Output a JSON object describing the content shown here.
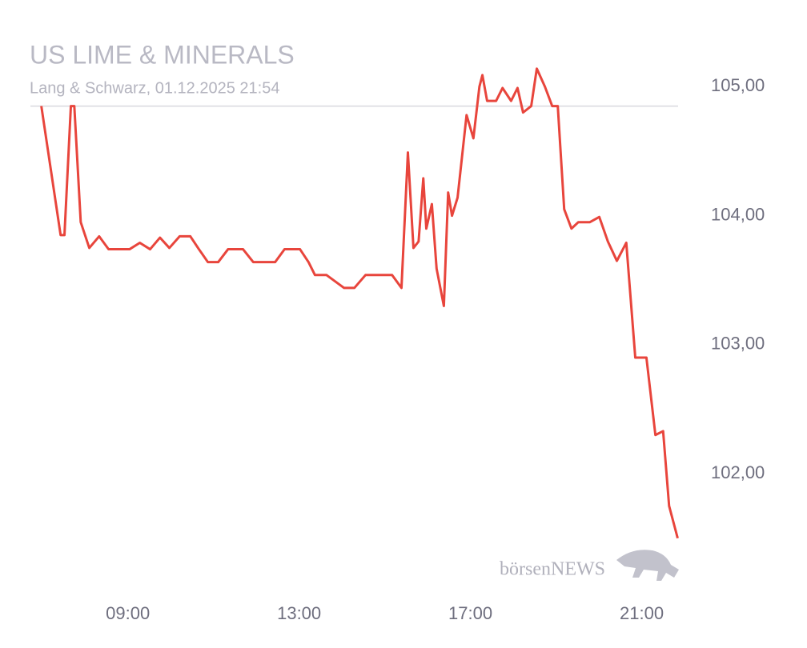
{
  "chart_data": {
    "type": "line",
    "title": "US LIME & MINERALS",
    "subtitle": "Lang & Schwarz, 01.12.2025 21:54",
    "watermark": "börsenNEWS",
    "color": "#e8453c",
    "reference_value": 104.85,
    "reference_color": "#d9d9de",
    "x": [
      6.98,
      7.43,
      7.52,
      7.67,
      7.75,
      7.9,
      8.1,
      8.33,
      8.55,
      8.78,
      9.04,
      9.28,
      9.52,
      9.75,
      9.97,
      10.21,
      10.46,
      10.66,
      10.87,
      11.11,
      11.34,
      11.69,
      11.93,
      12.44,
      12.66,
      13.02,
      13.22,
      13.37,
      13.64,
      14.05,
      14.29,
      14.55,
      15.17,
      15.39,
      15.54,
      15.67,
      15.79,
      15.9,
      15.97,
      16.1,
      16.21,
      16.38,
      16.48,
      16.57,
      16.7,
      16.91,
      17.07,
      17.21,
      17.28,
      17.39,
      17.6,
      17.75,
      17.95,
      18.1,
      18.23,
      18.42,
      18.55,
      18.74,
      18.91,
      19.04,
      19.19,
      19.36,
      19.52,
      19.79,
      20.01,
      20.21,
      20.42,
      20.64,
      20.85,
      21.11,
      21.32,
      21.5,
      21.64,
      21.84
    ],
    "values": [
      104.85,
      103.85,
      103.85,
      104.85,
      104.85,
      103.95,
      103.75,
      103.84,
      103.74,
      103.74,
      103.74,
      103.79,
      103.74,
      103.83,
      103.75,
      103.84,
      103.84,
      103.74,
      103.64,
      103.64,
      103.74,
      103.74,
      103.64,
      103.64,
      103.74,
      103.74,
      103.64,
      103.54,
      103.54,
      103.44,
      103.44,
      103.54,
      103.54,
      103.44,
      104.49,
      103.75,
      103.8,
      104.29,
      103.9,
      104.09,
      103.59,
      103.3,
      104.18,
      104.0,
      104.14,
      104.78,
      104.6,
      105.0,
      105.09,
      104.89,
      104.89,
      104.99,
      104.89,
      104.99,
      104.8,
      104.85,
      105.14,
      105.0,
      104.85,
      104.85,
      104.05,
      103.9,
      103.95,
      103.95,
      103.99,
      103.8,
      103.65,
      103.79,
      102.9,
      102.9,
      102.3,
      102.33,
      101.75,
      101.5
    ],
    "xlim": [
      6.8,
      21.85
    ],
    "xticks": [
      {
        "value": 9,
        "label": "09:00"
      },
      {
        "value": 13,
        "label": "13:00"
      },
      {
        "value": 17,
        "label": "17:00"
      },
      {
        "value": 21,
        "label": "21:00"
      }
    ],
    "ylim": [
      101.3,
      105.3
    ],
    "yticks": [
      {
        "value": 102,
        "label": "102,00"
      },
      {
        "value": 103,
        "label": "103,00"
      },
      {
        "value": 104,
        "label": "104,00"
      },
      {
        "value": 105,
        "label": "105,00"
      }
    ]
  }
}
